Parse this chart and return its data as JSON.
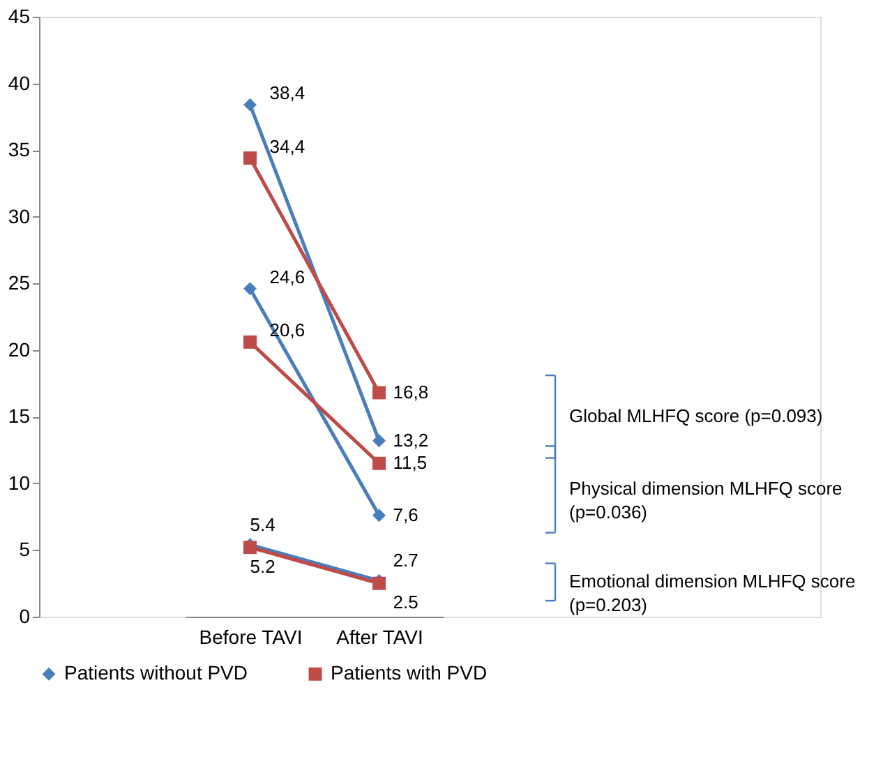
{
  "chart_data": {
    "type": "line",
    "categories": [
      "Before TAVI",
      "After TAVI"
    ],
    "series": [
      {
        "name": "Patients without PVD",
        "color": "#4a7ebb",
        "marker": "diamond",
        "values": [
          38.4,
          13.2
        ],
        "value_labels": [
          "38,4",
          "13,2"
        ]
      },
      {
        "name": "Patients with PVD",
        "color": "#be4b48",
        "marker": "square",
        "values": [
          34.4,
          16.8
        ],
        "value_labels": [
          "34,4",
          "16,8"
        ]
      },
      {
        "color": "#4a7ebb",
        "marker": "diamond",
        "values": [
          24.6,
          7.6
        ],
        "value_labels": [
          "24,6",
          "7,6"
        ]
      },
      {
        "color": "#be4b48",
        "marker": "square",
        "values": [
          20.6,
          11.5
        ],
        "value_labels": [
          "20,6",
          "11,5"
        ]
      },
      {
        "color": "#4a7ebb",
        "marker": "diamond",
        "values": [
          5.4,
          2.7
        ],
        "value_labels": [
          "5.4",
          "2.7"
        ]
      },
      {
        "color": "#be4b48",
        "marker": "square",
        "values": [
          5.2,
          2.5
        ],
        "value_labels": [
          "5.2",
          "2.5"
        ]
      }
    ],
    "annotations": [
      "Global MLHFQ score (p=0.093)",
      "Physical dimension MLHFQ score (p=0.036)",
      "Emotional dimension MLHFQ score (p=0.203)"
    ],
    "ylim": [
      0,
      45
    ],
    "yticks": [
      0,
      5,
      10,
      15,
      20,
      25,
      30,
      35,
      40,
      45
    ],
    "grid": false,
    "legend": "bottom"
  }
}
